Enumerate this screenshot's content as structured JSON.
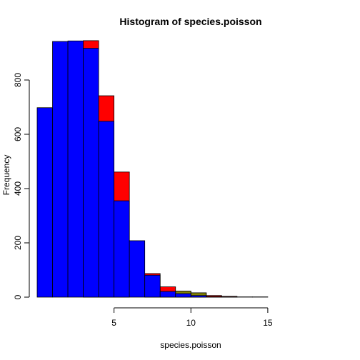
{
  "chart_data": {
    "type": "bar",
    "title": "Histogram of species.poisson",
    "xlabel": "species.poisson",
    "ylabel": "Frequency",
    "xlim": [
      0,
      19
    ],
    "ylim": [
      0,
      950
    ],
    "x_ticks": [
      5,
      10,
      15
    ],
    "x_tick_labels": [
      "5",
      "10",
      "15"
    ],
    "y_ticks": [
      0,
      200,
      400,
      600,
      800
    ],
    "y_tick_labels": [
      "0",
      "200",
      "400",
      "600",
      "800"
    ],
    "grid": false,
    "bin_edges": [
      0,
      1,
      2,
      3,
      4,
      5,
      6,
      7,
      8,
      9,
      10,
      11,
      12,
      13,
      14,
      15,
      16,
      17,
      18,
      19
    ],
    "series": [
      {
        "color": "#ff0000",
        "values": [
          0,
          0,
          0,
          945,
          742,
          461,
          0,
          87,
          38,
          22,
          16,
          6,
          3,
          1,
          1,
          0,
          0,
          0,
          0
        ]
      },
      {
        "color": "#808000",
        "values": [
          0,
          0,
          0,
          0,
          0,
          0,
          0,
          0,
          0,
          22,
          16,
          0,
          0,
          0,
          0,
          0,
          0,
          0,
          0
        ]
      },
      {
        "color": "#0000ff",
        "values": [
          698,
          942,
          944,
          917,
          648,
          355,
          208,
          81,
          21,
          13,
          6,
          2,
          1,
          0,
          0,
          0,
          0,
          0,
          0
        ]
      }
    ]
  }
}
